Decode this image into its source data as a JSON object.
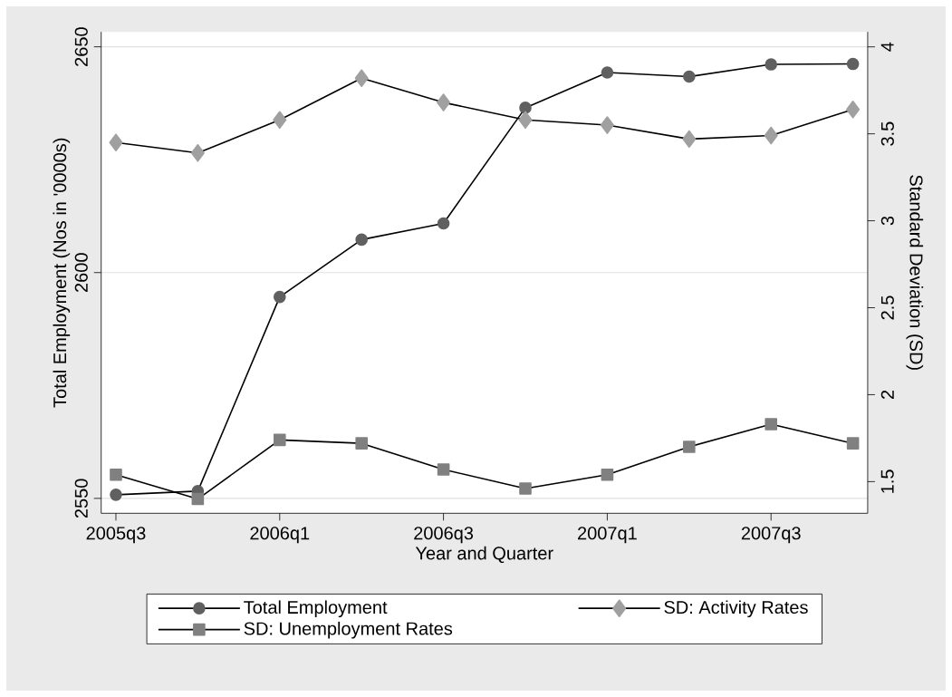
{
  "chart_data": {
    "type": "line",
    "xlabel": "Year and Quarter",
    "ylabel": "Total Employment (Nos in '0000s)",
    "y2label": "Standard Deviation (SD)",
    "categories": [
      "2005q3",
      null,
      "2006q1",
      null,
      "2006q3",
      null,
      "2007q1",
      null,
      "2007q3",
      null
    ],
    "series": [
      {
        "name": "Total Employment",
        "color": "#606060",
        "marker": "circle",
        "values": [
          2550.8,
          2551.6,
          2594.6,
          2607.3,
          2610.9,
          2636.5,
          2644.3,
          2643.4,
          2646.1,
          2646.2
        ]
      },
      {
        "name": "SD: Activity Rates",
        "color": "#a0a0a0",
        "marker": "diamond",
        "axis": "y2",
        "values": [
          3.45,
          3.39,
          3.58,
          3.82,
          3.68,
          3.58,
          3.55,
          3.47,
          3.49,
          3.64
        ]
      },
      {
        "name": "SD: Unemployment Rates",
        "color": "#808080",
        "marker": "square",
        "axis": "y2",
        "values": [
          1.54,
          1.4,
          1.74,
          1.72,
          1.57,
          1.46,
          1.54,
          1.7,
          1.83,
          1.72
        ]
      }
    ],
    "ylim": [
      2546.7,
      2653.3
    ],
    "yticks": [
      2550,
      2600,
      2650
    ],
    "y2lim": [
      1.318,
      4.086
    ],
    "y2ticks": [
      1.5,
      2,
      2.5,
      3,
      3.5,
      4
    ],
    "grid": "y",
    "legend": "bottom"
  }
}
